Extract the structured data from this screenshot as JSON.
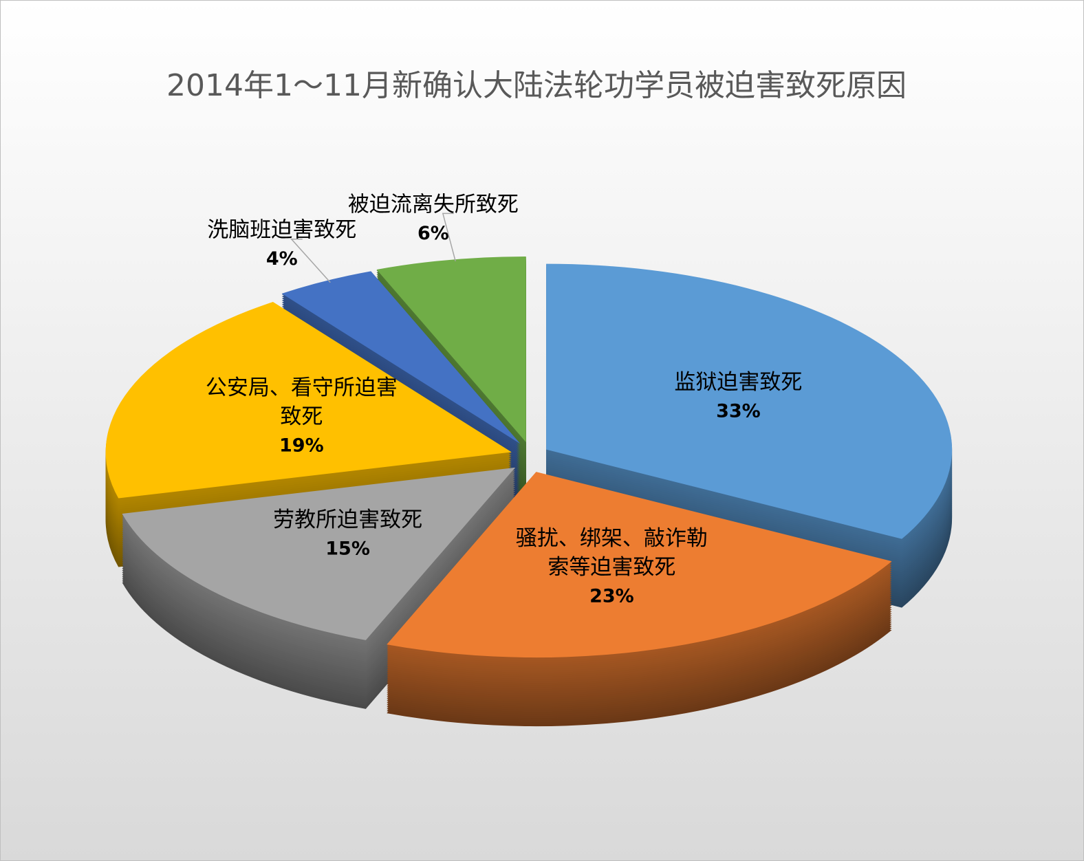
{
  "chart_data": {
    "type": "pie3d",
    "title": "2014年1～11月新确认大陆法轮功学员被迫害致死原因",
    "categories": [
      "监狱迫害致死",
      "骚扰、绑架、敲诈勒索等迫害致死",
      "劳教所迫害致死",
      "公安局、看守所迫害致死",
      "洗脑班迫害致死",
      "被迫流离失所致死"
    ],
    "values": [
      33,
      23,
      15,
      19,
      4,
      6
    ],
    "value_labels": [
      "33%",
      "23%",
      "15%",
      "19%",
      "4%",
      "6%"
    ],
    "colors": [
      "#5b9bd5",
      "#ed7d31",
      "#a5a5a5",
      "#ffc000",
      "#4472c4",
      "#70ad47"
    ]
  }
}
